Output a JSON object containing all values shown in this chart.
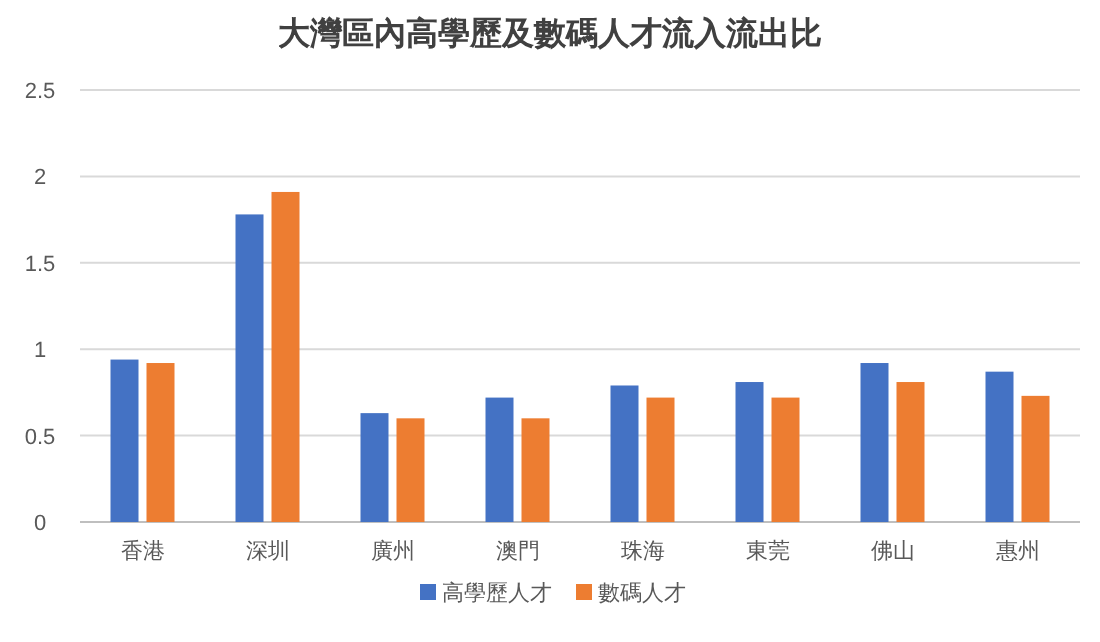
{
  "chart_data": {
    "type": "bar",
    "title": "大灣區內高學歷及數碼人才流入流出比",
    "categories": [
      "香港",
      "深圳",
      "廣州",
      "澳門",
      "珠海",
      "東莞",
      "佛山",
      "惠州"
    ],
    "series": [
      {
        "name": "高學歷人才",
        "color": "#4472c4",
        "values": [
          0.94,
          1.78,
          0.63,
          0.72,
          0.79,
          0.81,
          0.92,
          0.87
        ]
      },
      {
        "name": "數碼人才",
        "color": "#ed7d31",
        "values": [
          0.92,
          1.91,
          0.6,
          0.6,
          0.72,
          0.72,
          0.81,
          0.73
        ]
      }
    ],
    "ylim": [
      0,
      2.5
    ],
    "yticks": [
      0,
      0.5,
      1,
      1.5,
      2,
      2.5
    ],
    "grid": "y",
    "legend": "bottom"
  }
}
